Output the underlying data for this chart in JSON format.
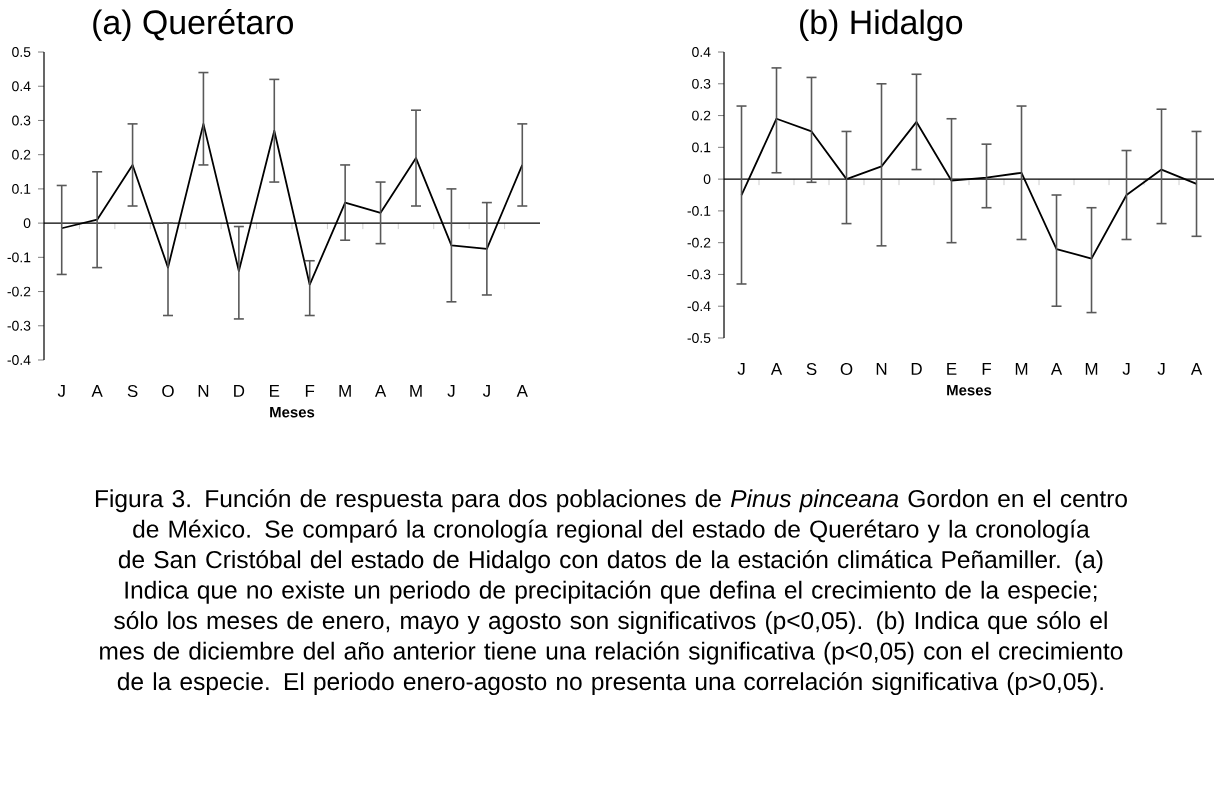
{
  "chart_data": [
    {
      "type": "line",
      "title": "(a) Querétaro",
      "xlabel": "Meses",
      "categories": [
        "J",
        "A",
        "S",
        "O",
        "N",
        "D",
        "E",
        "F",
        "M",
        "A",
        "M",
        "J",
        "J",
        "A"
      ],
      "series": [
        {
          "color": "#000000",
          "values": [
            -0.015,
            0.01,
            0.17,
            -0.13,
            0.29,
            -0.14,
            0.27,
            -0.18,
            0.06,
            0.03,
            0.19,
            -0.065,
            -0.075,
            0.17
          ],
          "errors": [
            [
              -0.15,
              0.11
            ],
            [
              -0.13,
              0.15
            ],
            [
              0.05,
              0.29
            ],
            [
              -0.27,
              0.0
            ],
            [
              0.17,
              0.44
            ],
            [
              -0.28,
              -0.01
            ],
            [
              0.12,
              0.42
            ],
            [
              -0.27,
              -0.11
            ],
            [
              -0.05,
              0.17
            ],
            [
              -0.06,
              0.12
            ],
            [
              0.05,
              0.33
            ],
            [
              -0.23,
              0.1
            ],
            [
              -0.21,
              0.06
            ],
            [
              0.05,
              0.29
            ]
          ]
        }
      ],
      "ylim": [
        -0.4,
        0.5
      ],
      "yticks": [
        -0.4,
        -0.3,
        -0.2,
        -0.1,
        0,
        0.1,
        0.2,
        0.3,
        0.4,
        0.5
      ],
      "marker": "none",
      "line_style": "solid",
      "annotations": [
        "Figura 3. Función de respuesta para dos poblaciones de *Pinus pinceana* Gordon en el centro de México. Se comparó la cronología regional del estado de Querétaro y la cronología de San Cristóbal del estado de Hidalgo con datos de la estación climática Peñamiller. (a) Indica que no existe un periodo de precipitación que defina el crecimiento de la especie; sólo los meses de enero, mayo y agosto son significativos (p<0,05). (b) Indica que sólo el mes de diciembre del año anterior tiene una relación significativa (p<0,05) con el crecimiento de la especie. El periodo enero-agosto no presenta una correlación significativa (p>0,05)."
      ]
    },
    {
      "type": "line",
      "title": "(b) Hidalgo",
      "xlabel": "Meses",
      "categories": [
        "J",
        "A",
        "S",
        "O",
        "N",
        "D",
        "E",
        "F",
        "M",
        "A",
        "M",
        "J",
        "J",
        "A"
      ],
      "series": [
        {
          "color": "#000000",
          "values": [
            -0.05,
            0.19,
            0.15,
            0.0,
            0.04,
            0.18,
            -0.005,
            0.005,
            0.02,
            -0.22,
            -0.25,
            -0.05,
            0.03,
            -0.015
          ],
          "errors": [
            [
              -0.33,
              0.23
            ],
            [
              0.02,
              0.35
            ],
            [
              -0.01,
              0.32
            ],
            [
              -0.14,
              0.15
            ],
            [
              -0.21,
              0.3
            ],
            [
              0.03,
              0.33
            ],
            [
              -0.2,
              0.19
            ],
            [
              -0.09,
              0.11
            ],
            [
              -0.19,
              0.23
            ],
            [
              -0.4,
              -0.05
            ],
            [
              -0.42,
              -0.09
            ],
            [
              -0.19,
              0.09
            ],
            [
              -0.14,
              0.22
            ],
            [
              -0.18,
              0.15
            ]
          ]
        }
      ],
      "ylim": [
        -0.5,
        0.4
      ],
      "yticks": [
        -0.5,
        -0.4,
        -0.3,
        -0.2,
        -0.1,
        0,
        0.1,
        0.2,
        0.3,
        0.4
      ],
      "marker": "none",
      "line_style": "solid"
    }
  ]
}
